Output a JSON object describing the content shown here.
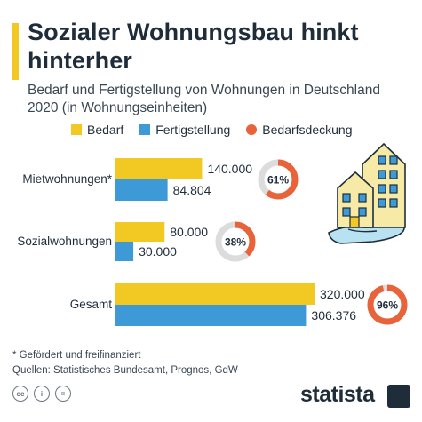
{
  "header": {
    "title": "Sozialer Wohnungsbau hinkt hinterher",
    "subtitle": "Bedarf und Fertigstellung von Wohnungen in Deutschland 2020 (in Wohnungseinheiten)"
  },
  "legend": [
    {
      "label": "Bedarf",
      "color": "#f2c822"
    },
    {
      "label": "Fertigstellung",
      "color": "#3d9ad6"
    },
    {
      "label": "Bedarfsdeckung",
      "color": "#e8623a"
    }
  ],
  "chart_data": {
    "type": "bar",
    "orientation": "horizontal",
    "categories": [
      "Mietwohnungen*",
      "Sozialwohnungen",
      "Gesamt"
    ],
    "series": [
      {
        "name": "Bedarf",
        "values": [
          140000,
          80000,
          320000
        ],
        "labels": [
          "140.000",
          "80.000",
          "320.000"
        ],
        "color": "#f2c822"
      },
      {
        "name": "Fertigstellung",
        "values": [
          84804,
          30000,
          306376
        ],
        "labels": [
          "84.804",
          "30.000",
          "306.376"
        ],
        "color": "#3d9ad6"
      }
    ],
    "coverage": {
      "name": "Bedarfsdeckung",
      "values": [
        61,
        38,
        96
      ],
      "labels": [
        "61%",
        "38%",
        "96%"
      ],
      "color": "#e8623a",
      "track_color": "#dcdcdc"
    },
    "xlim": [
      0,
      320000
    ]
  },
  "footnote": {
    "note": "* Gefördert und freifinanziert",
    "source": "Quellen: Statistisches Bundesamt, Prognos, GdW"
  },
  "footer": {
    "brand": "statista",
    "license_icons": [
      "cc-icon",
      "by-icon",
      "nd-icon"
    ],
    "license_glyphs": [
      "cc",
      "i",
      "="
    ]
  }
}
